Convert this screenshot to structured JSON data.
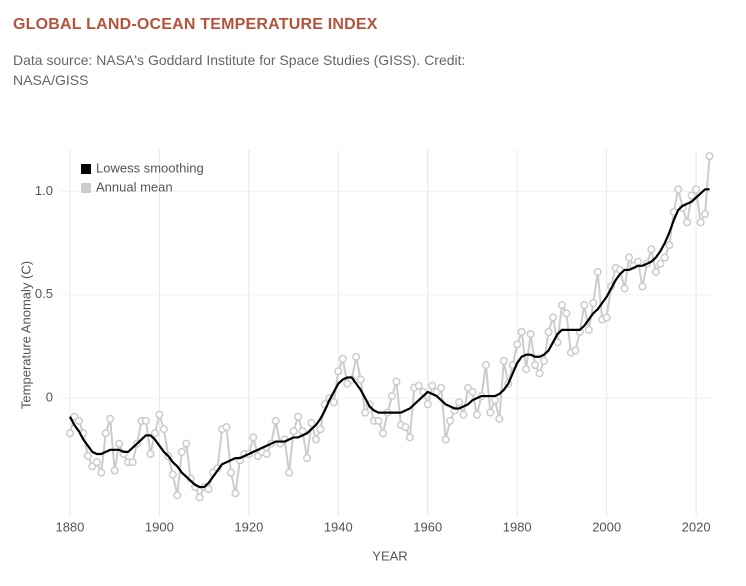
{
  "chart_data": {
    "type": "line",
    "title": "GLOBAL LAND-OCEAN TEMPERATURE INDEX",
    "subtitle": "Data source: NASA's Goddard Institute for Space Studies (GISS). Credit: NASA/GISS",
    "x_label": "YEAR",
    "y_label": "Temperature Anomaly (C)",
    "x": [
      1880,
      1881,
      1882,
      1883,
      1884,
      1885,
      1886,
      1887,
      1888,
      1889,
      1890,
      1891,
      1892,
      1893,
      1894,
      1895,
      1896,
      1897,
      1898,
      1899,
      1900,
      1901,
      1902,
      1903,
      1904,
      1905,
      1906,
      1907,
      1908,
      1909,
      1910,
      1911,
      1912,
      1913,
      1914,
      1915,
      1916,
      1917,
      1918,
      1919,
      1920,
      1921,
      1922,
      1923,
      1924,
      1925,
      1926,
      1927,
      1928,
      1929,
      1930,
      1931,
      1932,
      1933,
      1934,
      1935,
      1936,
      1937,
      1938,
      1939,
      1940,
      1941,
      1942,
      1943,
      1944,
      1945,
      1946,
      1947,
      1948,
      1949,
      1950,
      1951,
      1952,
      1953,
      1954,
      1955,
      1956,
      1957,
      1958,
      1959,
      1960,
      1961,
      1962,
      1963,
      1964,
      1965,
      1966,
      1967,
      1968,
      1969,
      1970,
      1971,
      1972,
      1973,
      1974,
      1975,
      1976,
      1977,
      1978,
      1979,
      1980,
      1981,
      1982,
      1983,
      1984,
      1985,
      1986,
      1987,
      1988,
      1989,
      1990,
      1991,
      1992,
      1993,
      1994,
      1995,
      1996,
      1997,
      1998,
      1999,
      2000,
      2001,
      2002,
      2003,
      2004,
      2005,
      2006,
      2007,
      2008,
      2009,
      2010,
      2011,
      2012,
      2013,
      2014,
      2015,
      2016,
      2017,
      2018,
      2019,
      2020,
      2021,
      2022,
      2023
    ],
    "series": [
      {
        "name": "Lowess smoothing",
        "color": "#000000",
        "markers": false,
        "values": [
          -0.09,
          -0.13,
          -0.16,
          -0.2,
          -0.23,
          -0.26,
          -0.27,
          -0.27,
          -0.26,
          -0.25,
          -0.25,
          -0.25,
          -0.26,
          -0.26,
          -0.24,
          -0.22,
          -0.2,
          -0.18,
          -0.18,
          -0.2,
          -0.23,
          -0.26,
          -0.28,
          -0.31,
          -0.33,
          -0.36,
          -0.38,
          -0.4,
          -0.42,
          -0.43,
          -0.43,
          -0.41,
          -0.38,
          -0.35,
          -0.32,
          -0.31,
          -0.3,
          -0.29,
          -0.29,
          -0.28,
          -0.27,
          -0.26,
          -0.25,
          -0.24,
          -0.23,
          -0.22,
          -0.21,
          -0.21,
          -0.21,
          -0.2,
          -0.19,
          -0.19,
          -0.18,
          -0.17,
          -0.15,
          -0.13,
          -0.1,
          -0.06,
          -0.01,
          0.03,
          0.07,
          0.09,
          0.1,
          0.1,
          0.07,
          0.04,
          0.0,
          -0.04,
          -0.06,
          -0.07,
          -0.07,
          -0.07,
          -0.07,
          -0.07,
          -0.07,
          -0.06,
          -0.05,
          -0.03,
          -0.01,
          0.01,
          0.03,
          0.02,
          0.01,
          -0.01,
          -0.03,
          -0.04,
          -0.05,
          -0.05,
          -0.04,
          -0.03,
          -0.01,
          0.0,
          0.01,
          0.01,
          0.01,
          0.01,
          0.02,
          0.04,
          0.07,
          0.12,
          0.17,
          0.2,
          0.21,
          0.21,
          0.2,
          0.2,
          0.21,
          0.23,
          0.27,
          0.31,
          0.33,
          0.33,
          0.33,
          0.33,
          0.33,
          0.35,
          0.38,
          0.41,
          0.43,
          0.46,
          0.49,
          0.53,
          0.57,
          0.6,
          0.62,
          0.62,
          0.63,
          0.64,
          0.64,
          0.65,
          0.66,
          0.68,
          0.71,
          0.75,
          0.8,
          0.86,
          0.91,
          0.93,
          0.94,
          0.95,
          0.97,
          0.99,
          1.01,
          1.01
        ]
      },
      {
        "name": "Annual mean",
        "color": "#cccccc",
        "markers": true,
        "values": [
          -0.17,
          -0.09,
          -0.11,
          -0.17,
          -0.28,
          -0.33,
          -0.31,
          -0.36,
          -0.17,
          -0.1,
          -0.35,
          -0.22,
          -0.27,
          -0.31,
          -0.31,
          -0.22,
          -0.11,
          -0.11,
          -0.27,
          -0.17,
          -0.08,
          -0.15,
          -0.28,
          -0.37,
          -0.47,
          -0.26,
          -0.22,
          -0.39,
          -0.43,
          -0.48,
          -0.43,
          -0.44,
          -0.36,
          -0.34,
          -0.15,
          -0.14,
          -0.36,
          -0.46,
          -0.3,
          -0.27,
          -0.27,
          -0.19,
          -0.28,
          -0.26,
          -0.27,
          -0.22,
          -0.11,
          -0.22,
          -0.2,
          -0.36,
          -0.16,
          -0.09,
          -0.16,
          -0.29,
          -0.12,
          -0.2,
          -0.15,
          -0.03,
          0.0,
          -0.02,
          0.13,
          0.19,
          0.07,
          0.09,
          0.2,
          0.09,
          -0.07,
          -0.03,
          -0.11,
          -0.11,
          -0.17,
          -0.07,
          0.01,
          0.08,
          -0.13,
          -0.14,
          -0.19,
          0.05,
          0.06,
          0.03,
          -0.03,
          0.06,
          0.03,
          0.05,
          -0.2,
          -0.11,
          -0.06,
          -0.02,
          -0.08,
          0.05,
          0.03,
          -0.08,
          0.01,
          0.16,
          -0.07,
          -0.01,
          -0.1,
          0.18,
          0.07,
          0.16,
          0.26,
          0.32,
          0.14,
          0.31,
          0.16,
          0.12,
          0.18,
          0.32,
          0.39,
          0.27,
          0.45,
          0.41,
          0.22,
          0.23,
          0.32,
          0.45,
          0.33,
          0.46,
          0.61,
          0.38,
          0.39,
          0.54,
          0.63,
          0.62,
          0.53,
          0.68,
          0.64,
          0.66,
          0.54,
          0.65,
          0.72,
          0.61,
          0.65,
          0.68,
          0.74,
          0.9,
          1.01,
          0.92,
          0.85,
          0.98,
          1.01,
          0.85,
          0.89,
          1.17
        ]
      }
    ],
    "xlim": [
      1878,
      2024
    ],
    "xticks": [
      1880,
      1900,
      1920,
      1940,
      1960,
      1980,
      2000,
      2020
    ],
    "ylim": [
      -0.57,
      1.2
    ],
    "yticks": [
      0,
      0.5,
      {
        "value": 1,
        "label": "1.0"
      }
    ],
    "grid": true,
    "legend": "top-left"
  }
}
